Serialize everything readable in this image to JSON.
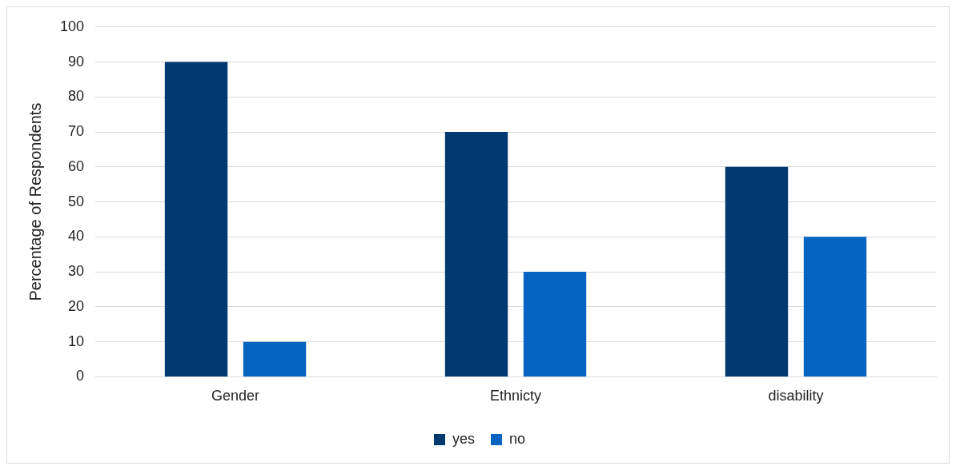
{
  "chart_data": {
    "type": "bar",
    "ylabel": "Percentage of Respondents",
    "categories": [
      "Gender",
      "Ethnicty",
      "disability"
    ],
    "series": [
      {
        "name": "yes",
        "color": "#003a70",
        "values": [
          90,
          70,
          60
        ]
      },
      {
        "name": "no",
        "color": "#0563c1",
        "values": [
          10,
          30,
          40
        ]
      }
    ],
    "ylim": [
      0,
      100
    ],
    "yticks": [
      0,
      10,
      20,
      30,
      40,
      50,
      60,
      70,
      80,
      90,
      100
    ],
    "grid": "y",
    "legend": "bottom"
  }
}
